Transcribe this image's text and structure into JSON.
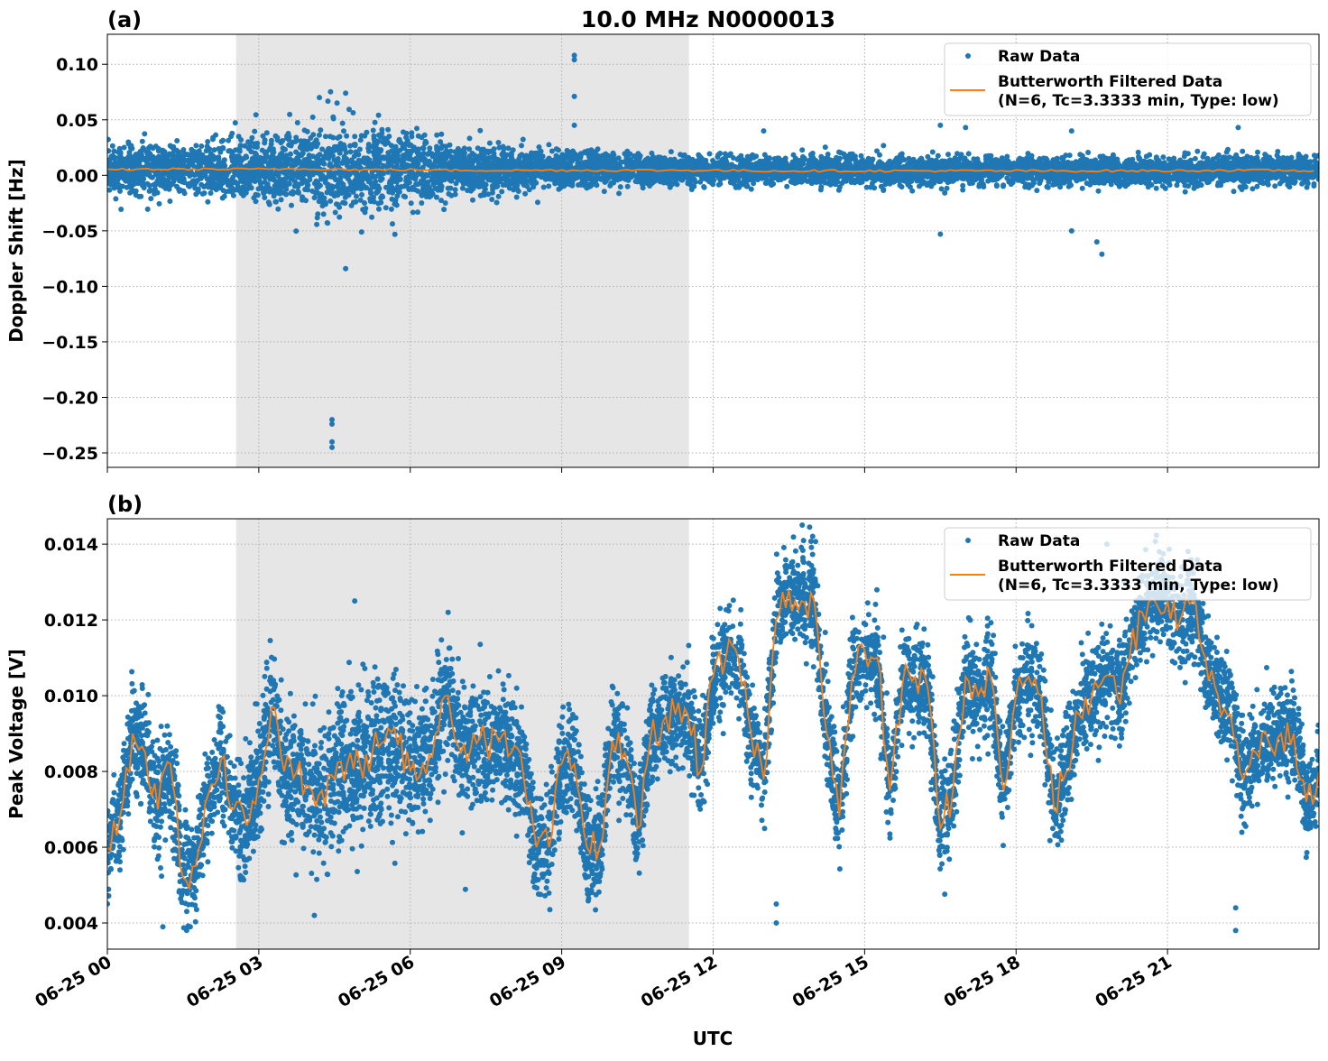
{
  "title": "10.0 MHz N0000013",
  "xlabel": "UTC",
  "x_tick_labels": [
    "06-25 00",
    "06-25 03",
    "06-25 06",
    "06-25 09",
    "06-25 12",
    "06-25 15",
    "06-25 18",
    "06-25 21"
  ],
  "x_tick_hours": [
    0,
    3,
    6,
    9,
    12,
    15,
    18,
    21
  ],
  "legend": {
    "raw": "Raw Data",
    "filtered_line1": "Butterworth Filtered Data",
    "filtered_line2": "(N=6, Tc=3.3333 min, Type: low)",
    "placement": "top-right"
  },
  "colors": {
    "raw": "#1f77b4",
    "filtered": "#ff7f0e",
    "shade": "#e6e6e6"
  },
  "chart_data": [
    {
      "type": "scatter+line",
      "panel_label": "(a)",
      "ylabel": "Doppler Shift [Hz]",
      "xlim_hours": [
        0,
        24
      ],
      "ylim": [
        -0.263,
        0.127
      ],
      "y_ticks": [
        0.1,
        0.05,
        0.0,
        -0.05,
        -0.1,
        -0.15,
        -0.2,
        -0.25
      ],
      "y_tick_labels": [
        "0.10",
        "0.05",
        "0.00",
        "−0.05",
        "−0.10",
        "−0.15",
        "−0.20",
        "−0.25"
      ],
      "grid": true,
      "shaded_interval_hours": [
        2.55,
        11.52
      ],
      "filtered_hourly": [
        0.005,
        0.0055,
        0.0055,
        0.0055,
        0.006,
        0.005,
        0.005,
        0.0045,
        0.0045,
        0.0045,
        0.0045,
        0.0045,
        0.0045,
        0.004,
        0.004,
        0.004,
        0.004,
        0.004,
        0.004,
        0.004,
        0.004,
        0.004,
        0.0045,
        0.0045,
        0.004
      ],
      "raw_spread_hourly": [
        0.02,
        0.022,
        0.024,
        0.03,
        0.038,
        0.04,
        0.032,
        0.024,
        0.018,
        0.016,
        0.014,
        0.013,
        0.012,
        0.012,
        0.012,
        0.012,
        0.012,
        0.012,
        0.012,
        0.012,
        0.012,
        0.012,
        0.013,
        0.013,
        0.013
      ],
      "raw_outliers": [
        [
          4.45,
          -0.245
        ],
        [
          4.45,
          -0.24
        ],
        [
          4.45,
          -0.22
        ],
        [
          4.45,
          -0.224
        ],
        [
          4.72,
          -0.084
        ],
        [
          9.25,
          0.108
        ],
        [
          9.25,
          0.104
        ],
        [
          9.25,
          0.071
        ],
        [
          9.25,
          0.045
        ],
        [
          4.72,
          0.074
        ],
        [
          4.2,
          0.07
        ],
        [
          4.55,
          0.065
        ],
        [
          19.7,
          -0.071
        ],
        [
          19.6,
          -0.06
        ],
        [
          16.5,
          -0.053
        ],
        [
          16.5,
          0.045
        ],
        [
          19.1,
          -0.05
        ],
        [
          17.0,
          0.043
        ],
        [
          13.0,
          0.04
        ],
        [
          19.1,
          0.04
        ],
        [
          22.4,
          0.043
        ]
      ]
    },
    {
      "type": "scatter+line",
      "panel_label": "(b)",
      "ylabel": "Peak Voltage [V]",
      "xlim_hours": [
        0,
        24
      ],
      "ylim": [
        0.00331,
        0.01467
      ],
      "y_ticks": [
        0.004,
        0.006,
        0.008,
        0.01,
        0.012,
        0.014
      ],
      "y_tick_labels": [
        "0.004",
        "0.006",
        "0.008",
        "0.010",
        "0.012",
        "0.014"
      ],
      "grid": true,
      "shaded_interval_hours": [
        2.55,
        11.52
      ],
      "filtered_step_hours": 0.25,
      "filtered": [
        0.006,
        0.0068,
        0.009,
        0.0085,
        0.007,
        0.0082,
        0.0052,
        0.0055,
        0.0074,
        0.0083,
        0.007,
        0.0066,
        0.0078,
        0.0097,
        0.008,
        0.008,
        0.0076,
        0.0075,
        0.0078,
        0.0082,
        0.0082,
        0.0085,
        0.0088,
        0.0087,
        0.008,
        0.0082,
        0.009,
        0.01,
        0.0085,
        0.009,
        0.0087,
        0.0088,
        0.0085,
        0.0078,
        0.006,
        0.006,
        0.0082,
        0.0082,
        0.006,
        0.006,
        0.0088,
        0.0085,
        0.0065,
        0.0088,
        0.0093,
        0.0095,
        0.0095,
        0.008,
        0.0105,
        0.011,
        0.011,
        0.009,
        0.0078,
        0.012,
        0.0128,
        0.0125,
        0.0125,
        0.009,
        0.0068,
        0.0105,
        0.0112,
        0.011,
        0.0075,
        0.0103,
        0.0105,
        0.0102,
        0.0065,
        0.0075,
        0.0105,
        0.01,
        0.0105,
        0.0075,
        0.01,
        0.0105,
        0.01,
        0.007,
        0.008,
        0.0095,
        0.01,
        0.0105,
        0.01,
        0.011,
        0.0122,
        0.0125,
        0.0125,
        0.012,
        0.0125,
        0.011,
        0.01,
        0.0095,
        0.0078,
        0.0085,
        0.0088,
        0.009,
        0.009,
        0.0072,
        0.008
      ],
      "raw_spread_hourly": [
        0.0012,
        0.0014,
        0.0014,
        0.0016,
        0.0018,
        0.002,
        0.0018,
        0.0016,
        0.0014,
        0.0014,
        0.0013,
        0.0012,
        0.0012,
        0.0012,
        0.0013,
        0.0012,
        0.0012,
        0.0013,
        0.0013,
        0.0013,
        0.0013,
        0.0012,
        0.0012,
        0.0012,
        0.0012
      ],
      "raw_outliers": [
        [
          13.25,
          0.004
        ],
        [
          13.25,
          0.0045
        ],
        [
          22.35,
          0.0038
        ],
        [
          22.35,
          0.0044
        ],
        [
          4.1,
          0.0042
        ],
        [
          1.1,
          0.0039
        ],
        [
          4.9,
          0.0125
        ],
        [
          6.75,
          0.0122
        ],
        [
          19.8,
          0.014
        ],
        [
          15.5,
          0.008
        ],
        [
          12.2,
          0.009
        ]
      ]
    }
  ]
}
